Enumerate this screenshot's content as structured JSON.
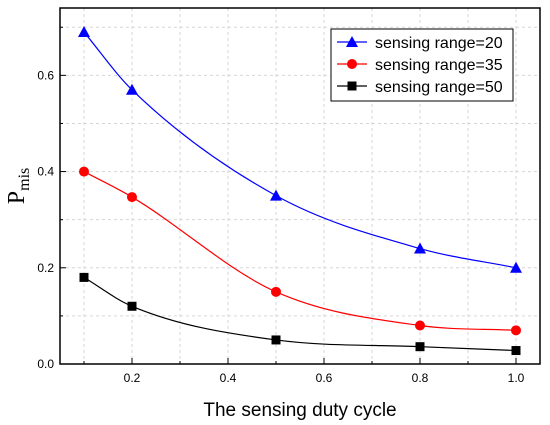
{
  "chart_data": {
    "type": "line",
    "title": "",
    "xlabel": "The sensing duty cycle",
    "ylabel": "P",
    "ylabel_subscript": "mis",
    "xlim": [
      0.05,
      1.05
    ],
    "ylim": [
      0.0,
      0.74
    ],
    "xticks": [
      0.2,
      0.4,
      0.6,
      0.8,
      1.0
    ],
    "xtick_labels": [
      "0.2",
      "0.4",
      "0.6",
      "0.8",
      "1.0"
    ],
    "yticks": [
      0.0,
      0.2,
      0.4,
      0.6
    ],
    "ytick_labels": [
      "0.0",
      "0.2",
      "0.4",
      "0.6"
    ],
    "grid": true,
    "legend_position": "top-right",
    "x": [
      0.1,
      0.2,
      0.5,
      0.8,
      1.0
    ],
    "series": [
      {
        "name": "sensing range=20",
        "values": [
          0.69,
          0.57,
          0.35,
          0.24,
          0.2
        ],
        "color": "#0000ff",
        "marker": "triangle"
      },
      {
        "name": "sensing range=35",
        "values": [
          0.4,
          0.347,
          0.15,
          0.08,
          0.07
        ],
        "color": "#ff0000",
        "marker": "circle"
      },
      {
        "name": "sensing range=50",
        "values": [
          0.18,
          0.12,
          0.05,
          0.036,
          0.028
        ],
        "color": "#000000",
        "marker": "square"
      }
    ]
  }
}
